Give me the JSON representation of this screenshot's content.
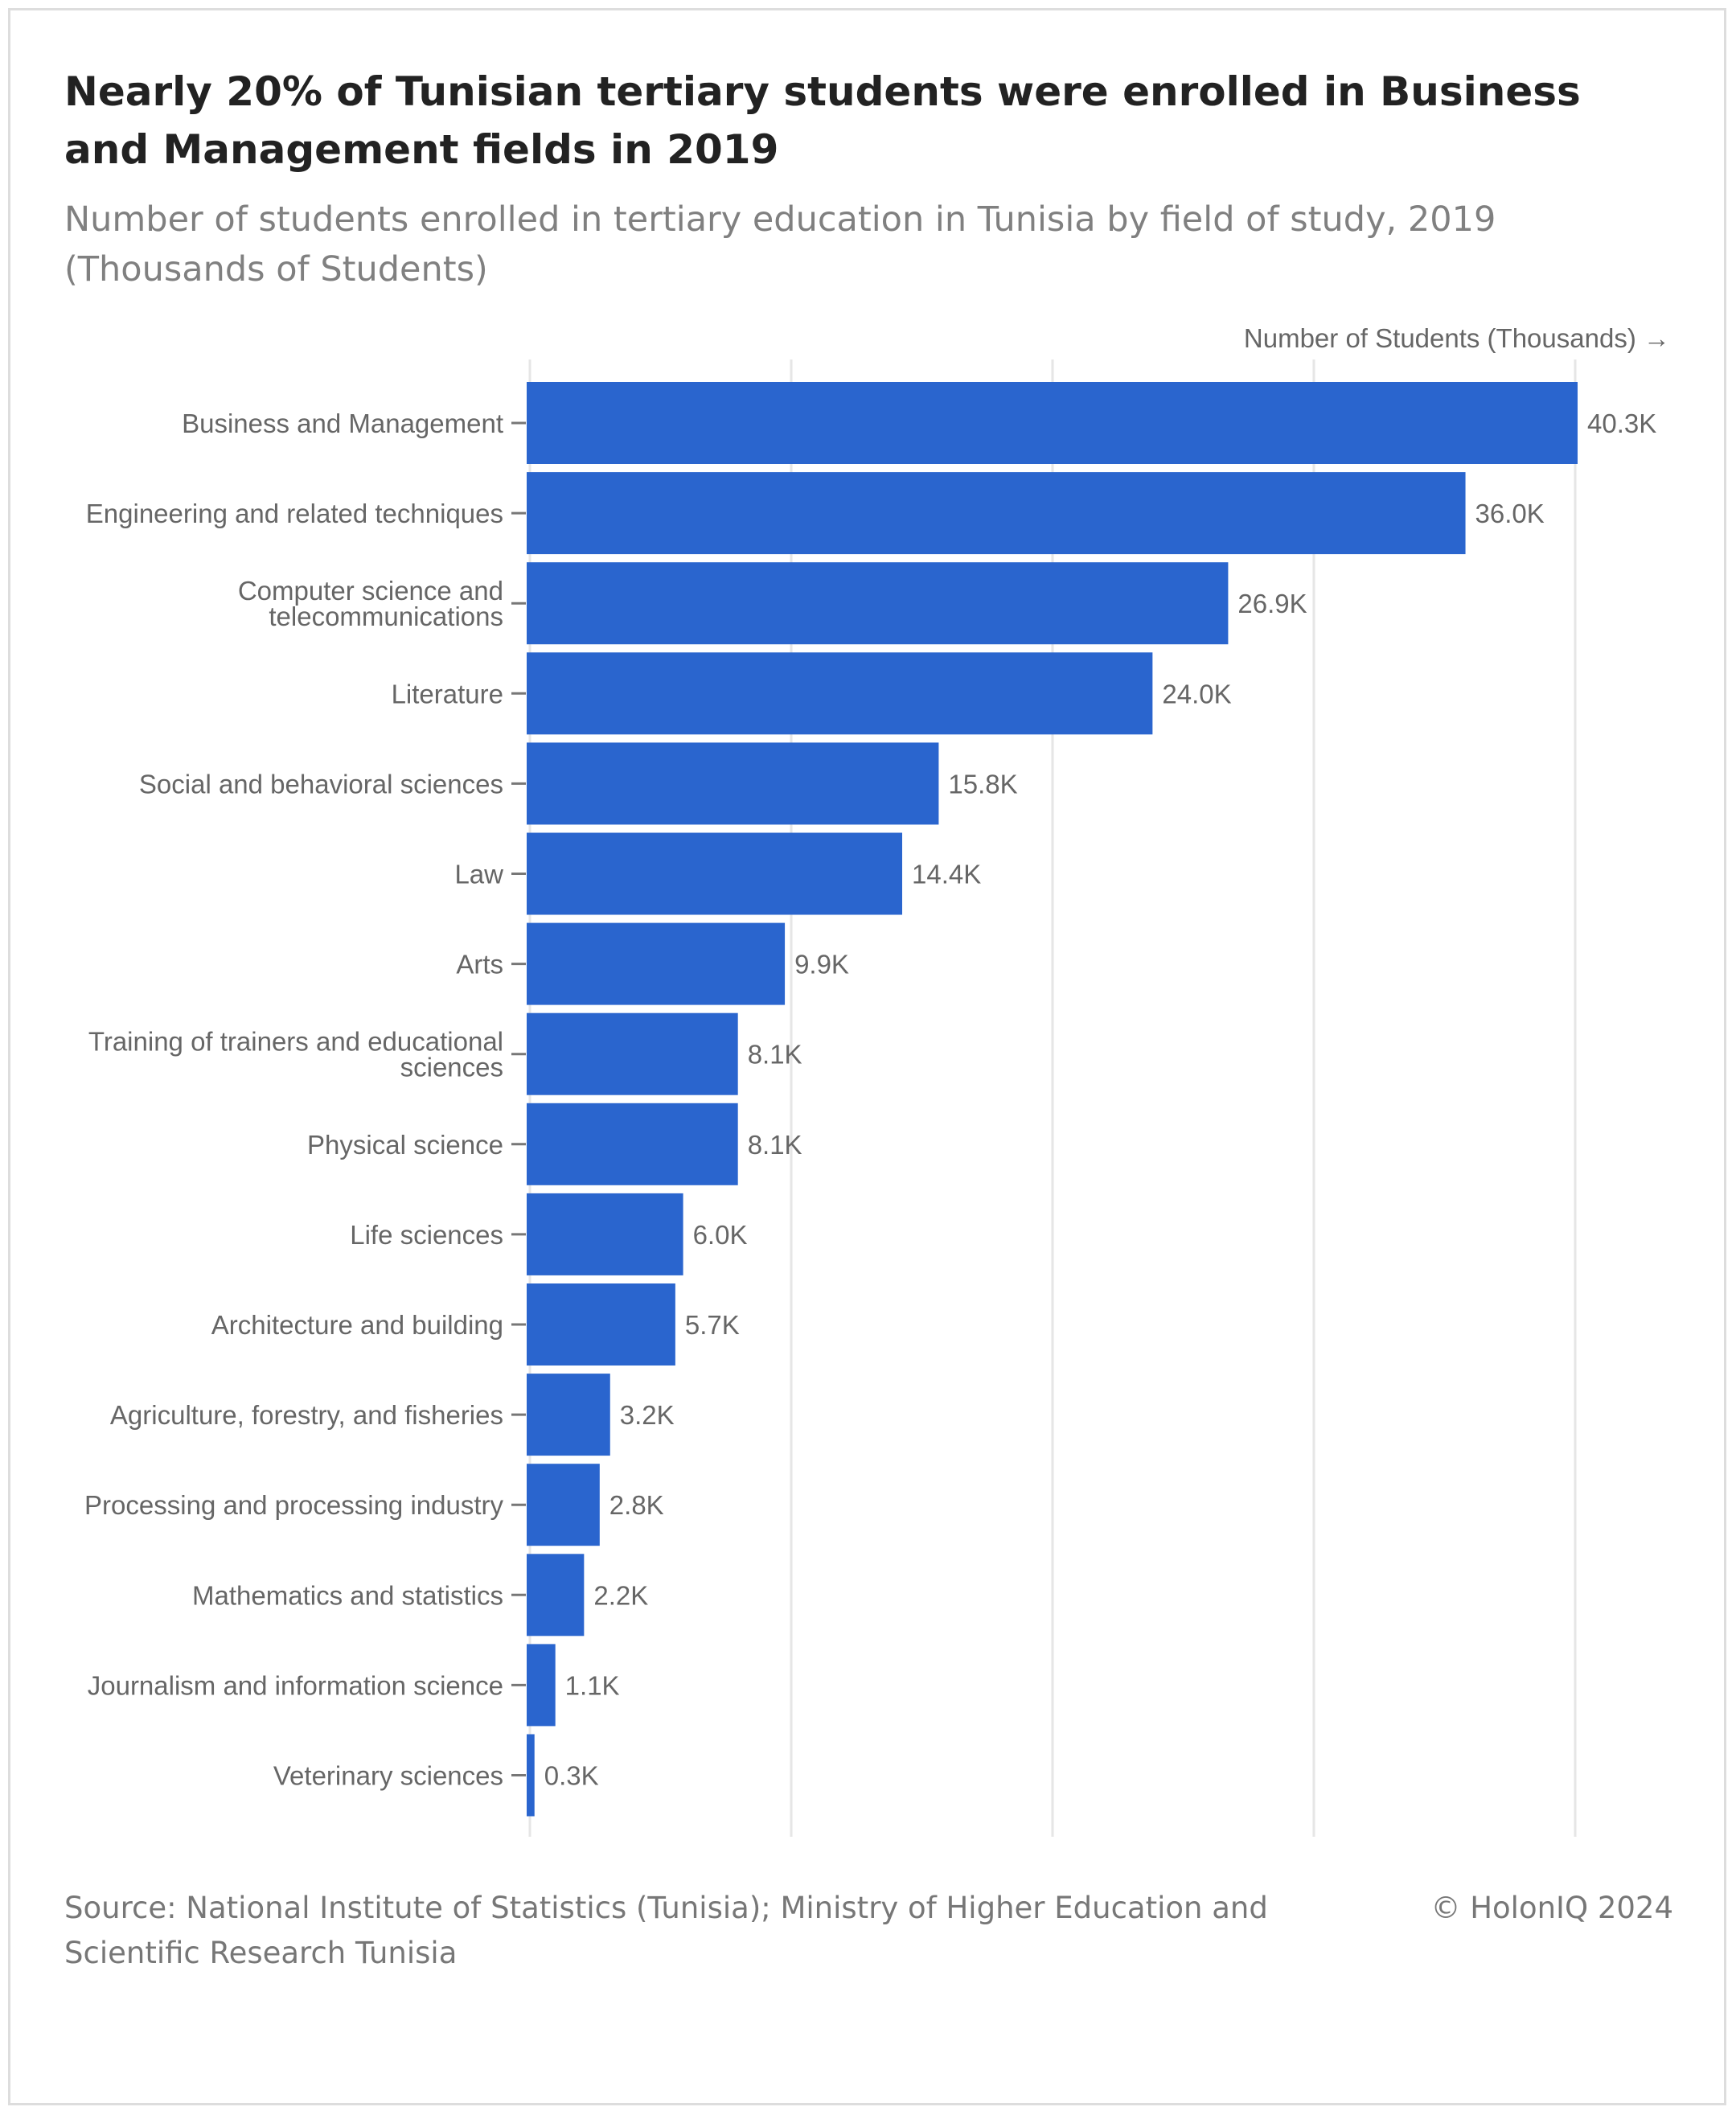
{
  "header": {
    "title": "Nearly 20% of Tunisian tertiary students were enrolled in Business and Management fields in 2019",
    "subtitle": "Number of students enrolled in tertiary education in Tunisia by field of study, 2019 (Thousands of Students)"
  },
  "footer": {
    "source": "Source: National Institute of Statistics (Tunisia); Ministry of Higher Education and Scientific Research Tunisia",
    "copyright": "© HolonIQ 2024"
  },
  "colors": {
    "bar": "#2a65ce",
    "grid": "#e6e6e6",
    "axis_text": "#666666"
  },
  "chart_data": {
    "type": "bar",
    "orientation": "horizontal",
    "xlabel": "Number of Students (Thousands) →",
    "xlim": [
      0,
      40.3
    ],
    "grid": true,
    "categories": [
      "Business and Management",
      "Engineering and related techniques",
      "Computer science and telecommunications",
      "Literature",
      "Social and behavioral sciences",
      "Law",
      "Arts",
      "Training of trainers and educational sciences",
      "Physical science",
      "Life sciences",
      "Architecture and building",
      "Agriculture, forestry, and fisheries",
      "Processing and processing industry",
      "Mathematics and statistics",
      "Journalism and information science",
      "Veterinary sciences"
    ],
    "category_lines": [
      [
        "Business and Management"
      ],
      [
        "Engineering and related techniques"
      ],
      [
        "Computer science and",
        "telecommunications"
      ],
      [
        "Literature"
      ],
      [
        "Social and behavioral sciences"
      ],
      [
        "Law"
      ],
      [
        "Arts"
      ],
      [
        "Training of trainers and educational",
        "sciences"
      ],
      [
        "Physical science"
      ],
      [
        "Life sciences"
      ],
      [
        "Architecture and building"
      ],
      [
        "Agriculture, forestry, and fisheries"
      ],
      [
        "Processing and processing industry"
      ],
      [
        "Mathematics and statistics"
      ],
      [
        "Journalism and information science"
      ],
      [
        "Veterinary sciences"
      ]
    ],
    "values": [
      40.3,
      36.0,
      26.9,
      24.0,
      15.8,
      14.4,
      9.9,
      8.1,
      8.1,
      6.0,
      5.7,
      3.2,
      2.8,
      2.2,
      1.1,
      0.3
    ],
    "labels": [
      "40.3K",
      "36.0K",
      "26.9K",
      "24.0K",
      "15.8K",
      "14.4K",
      "9.9K",
      "8.1K",
      "8.1K",
      "6.0K",
      "5.7K",
      "3.2K",
      "2.8K",
      "2.2K",
      "1.1K",
      "0.3K"
    ]
  }
}
